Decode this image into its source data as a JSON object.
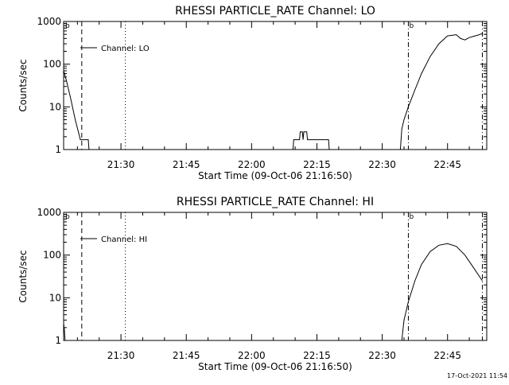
{
  "chart_data": [
    {
      "type": "line",
      "title": "RHESSI PARTICLE_RATE Channel: LO",
      "ylabel": "Counts/sec",
      "xlabel": "Start Time (09-Oct-06 21:16:50)",
      "yscale": "log",
      "ylim": [
        1,
        1000
      ],
      "xlim": [
        "21:16:50",
        "22:54:00"
      ],
      "y_ticks": [
        "1",
        "10",
        "100",
        "1000"
      ],
      "x_ticks": [
        "21:30",
        "21:45",
        "22:00",
        "22:15",
        "22:30",
        "22:45"
      ],
      "legend": "Channel: LO",
      "legend_position": "top-left",
      "marker_labels": [
        "b",
        "b"
      ],
      "vlines": [
        {
          "time": "21:21:00",
          "style": "dashed"
        },
        {
          "time": "21:31:00",
          "style": "dotted"
        },
        {
          "time": "22:36:00",
          "style": "dashdot"
        },
        {
          "time": "22:53:00",
          "style": "dashdot"
        }
      ],
      "series": [
        {
          "segments": [
            [
              [
                "21:16:50",
                70
              ],
              [
                "21:17:30",
                40
              ],
              [
                "21:18:30",
                15
              ],
              [
                "21:19:30",
                5
              ],
              [
                "21:20:30",
                2
              ],
              [
                "21:20:40",
                1.7
              ],
              [
                "21:21:00",
                1.7
              ],
              [
                "21:22:30",
                1.7
              ],
              [
                "21:22:40",
                1
              ]
            ],
            [
              [
                "22:09:30",
                1
              ],
              [
                "22:09:40",
                1.7
              ],
              [
                "22:11:00",
                1.7
              ],
              [
                "22:11:10",
                2.6
              ],
              [
                "22:11:40",
                2.6
              ],
              [
                "22:11:50",
                1.7
              ],
              [
                "22:12:00",
                2.6
              ],
              [
                "22:12:40",
                2.6
              ],
              [
                "22:12:50",
                1.7
              ],
              [
                "22:17:40",
                1.7
              ],
              [
                "22:17:50",
                1
              ]
            ],
            [
              [
                "22:34:10",
                1
              ],
              [
                "22:34:30",
                3
              ],
              [
                "22:35:00",
                5
              ],
              [
                "22:36:00",
                10
              ],
              [
                "22:37:30",
                25
              ],
              [
                "22:39:00",
                60
              ],
              [
                "22:41:00",
                150
              ],
              [
                "22:43:00",
                300
              ],
              [
                "22:45:00",
                460
              ],
              [
                "22:47:00",
                490
              ],
              [
                "22:48:00",
                400
              ],
              [
                "22:49:00",
                370
              ],
              [
                "22:50:00",
                420
              ],
              [
                "22:51:00",
                450
              ],
              [
                "22:52:00",
                480
              ],
              [
                "22:53:00",
                520
              ]
            ]
          ]
        }
      ]
    },
    {
      "type": "line",
      "title": "RHESSI PARTICLE_RATE Channel: HI",
      "ylabel": "Counts/sec",
      "xlabel": "Start Time (09-Oct-06 21:16:50)",
      "yscale": "log",
      "ylim": [
        1,
        1000
      ],
      "xlim": [
        "21:16:50",
        "22:54:00"
      ],
      "y_ticks": [
        "1",
        "10",
        "100",
        "1000"
      ],
      "x_ticks": [
        "21:30",
        "21:45",
        "22:00",
        "22:15",
        "22:30",
        "22:45"
      ],
      "legend": "Channel: HI",
      "legend_position": "top-left",
      "marker_labels": [
        "b",
        "b"
      ],
      "vlines": [
        {
          "time": "21:21:00",
          "style": "dashed"
        },
        {
          "time": "21:31:00",
          "style": "dotted"
        },
        {
          "time": "22:36:00",
          "style": "dashdot"
        },
        {
          "time": "22:53:00",
          "style": "dashdot"
        }
      ],
      "series": [
        {
          "segments": [
            [
              [
                "21:16:50",
                2.5
              ],
              [
                "21:17:00",
                1.8
              ],
              [
                "21:17:10",
                1
              ]
            ],
            [
              [
                "22:34:30",
                1
              ],
              [
                "22:35:00",
                3
              ],
              [
                "22:36:00",
                8
              ],
              [
                "22:37:30",
                25
              ],
              [
                "22:39:00",
                60
              ],
              [
                "22:41:00",
                120
              ],
              [
                "22:43:00",
                170
              ],
              [
                "22:45:00",
                185
              ],
              [
                "22:47:00",
                160
              ],
              [
                "22:49:00",
                100
              ],
              [
                "22:51:00",
                50
              ],
              [
                "22:53:00",
                25
              ]
            ]
          ]
        }
      ]
    }
  ],
  "footer": {
    "timestamp": "17-Oct-2021 11:54"
  }
}
